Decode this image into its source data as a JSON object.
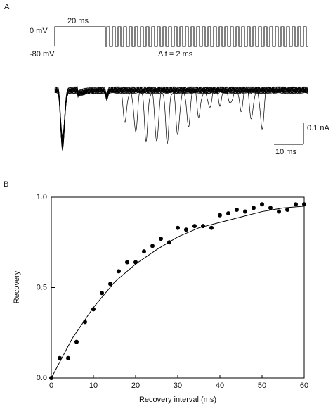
{
  "panel_a": {
    "label": "A",
    "level_high": "0 mV",
    "level_low": "-80 mV",
    "pulse": "20 ms",
    "interval": "Δ t = 2 ms",
    "scale_y": "0.1 nA",
    "scale_x": "10 ms"
  },
  "chart_data": {
    "type": "scatter",
    "panel": "B",
    "xlabel": "Recovery interval (ms)",
    "ylabel": "Recovery",
    "x": [
      0,
      2,
      4,
      6,
      8,
      10,
      12,
      14,
      16,
      18,
      20,
      22,
      24,
      26,
      28,
      30,
      32,
      34,
      36,
      38,
      40,
      42,
      44,
      46,
      48,
      50,
      52,
      54,
      56,
      58,
      60
    ],
    "values": [
      0.0,
      0.11,
      0.11,
      0.2,
      0.31,
      0.38,
      0.47,
      0.52,
      0.59,
      0.64,
      0.64,
      0.7,
      0.73,
      0.77,
      0.75,
      0.83,
      0.82,
      0.84,
      0.84,
      0.83,
      0.9,
      0.91,
      0.93,
      0.92,
      0.94,
      0.96,
      0.94,
      0.92,
      0.93,
      0.96,
      0.96
    ],
    "color": "#000000",
    "fit": {
      "x": [
        0,
        5,
        10,
        15,
        20,
        25,
        30,
        35,
        40,
        45,
        50,
        55,
        60
      ],
      "values": [
        0,
        0.22,
        0.39,
        0.53,
        0.63,
        0.71,
        0.78,
        0.83,
        0.86,
        0.89,
        0.92,
        0.94,
        0.95
      ]
    },
    "xlim": [
      0,
      60
    ],
    "xticks": [
      0,
      10,
      20,
      30,
      40,
      50,
      60
    ],
    "ylim": [
      0,
      1
    ],
    "yticks": [
      {
        "value": 0,
        "label": "0.0"
      },
      {
        "value": 0.5,
        "label": "0.5"
      },
      {
        "value": 1,
        "label": "1.0"
      }
    ]
  }
}
